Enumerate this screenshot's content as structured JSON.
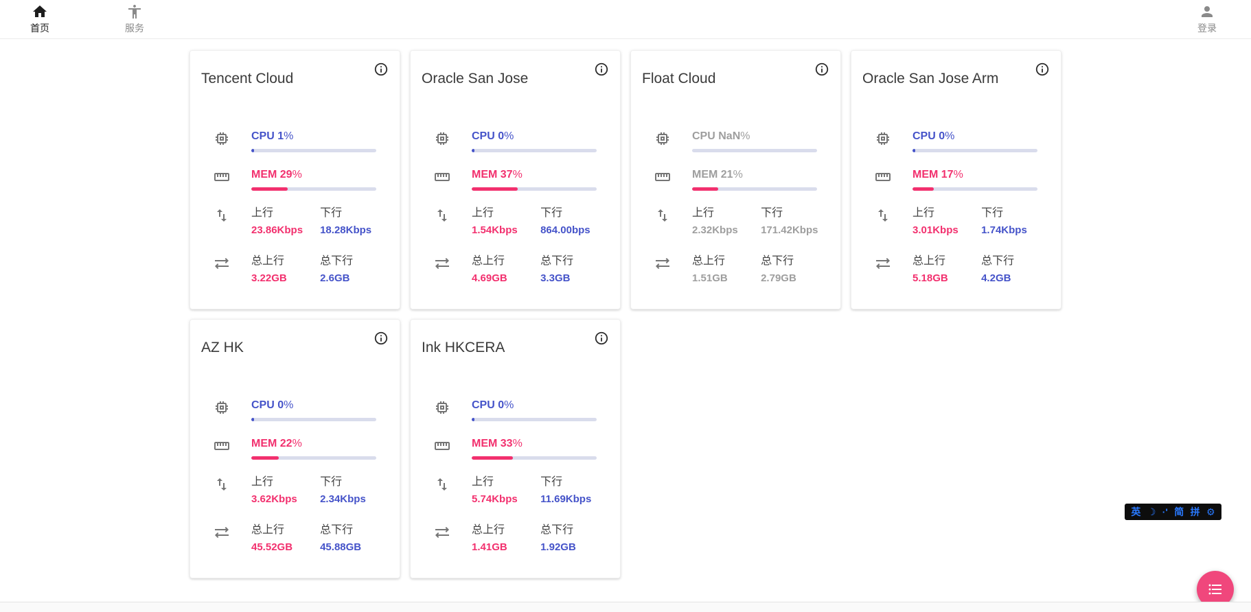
{
  "nav": {
    "items": [
      {
        "label": "首页",
        "icon": "home-icon",
        "active": true
      },
      {
        "label": "服务",
        "icon": "accessibility-icon",
        "active": false
      }
    ],
    "login": {
      "label": "登录",
      "icon": "person-icon"
    }
  },
  "labels": {
    "cpu": "CPU",
    "mem": "MEM",
    "pct": "%",
    "up": "上行",
    "down": "下行",
    "total_up": "总上行",
    "total_down": "总下行"
  },
  "cards": [
    {
      "title": "Tencent Cloud",
      "cpu": "1",
      "cpu_pct": 1,
      "mem": "29",
      "mem_pct": 29,
      "up": "23.86Kbps",
      "down": "18.28Kbps",
      "total_up": "3.22GB",
      "total_down": "2.6GB",
      "muted": false
    },
    {
      "title": "Oracle San Jose",
      "cpu": "0",
      "cpu_pct": 0,
      "mem": "37",
      "mem_pct": 37,
      "up": "1.54Kbps",
      "down": "864.00bps",
      "total_up": "4.69GB",
      "total_down": "3.3GB",
      "muted": false
    },
    {
      "title": "Float Cloud",
      "cpu": "NaN",
      "cpu_pct": null,
      "mem": "21",
      "mem_pct": 21,
      "up": "2.32Kbps",
      "down": "171.42Kbps",
      "total_up": "1.51GB",
      "total_down": "2.79GB",
      "muted": true
    },
    {
      "title": "Oracle San Jose Arm",
      "cpu": "0",
      "cpu_pct": 0,
      "mem": "17",
      "mem_pct": 17,
      "up": "3.01Kbps",
      "down": "1.74Kbps",
      "total_up": "5.18GB",
      "total_down": "4.2GB",
      "muted": false
    },
    {
      "title": "AZ HK",
      "cpu": "0",
      "cpu_pct": 0,
      "mem": "22",
      "mem_pct": 22,
      "up": "3.62Kbps",
      "down": "2.34Kbps",
      "total_up": "45.52GB",
      "total_down": "45.88GB",
      "muted": false
    },
    {
      "title": "Ink HKCERA",
      "cpu": "0",
      "cpu_pct": 0,
      "mem": "33",
      "mem_pct": 33,
      "up": "5.74Kbps",
      "down": "11.69Kbps",
      "total_up": "1.41GB",
      "total_down": "1.92GB",
      "muted": false
    }
  ],
  "ime": {
    "keys": [
      "英",
      "☽",
      "·'",
      "简",
      "拼",
      "⚙"
    ]
  },
  "fab": {
    "icon": "list-icon"
  },
  "colors": {
    "accent_blue": "#4553c9",
    "accent_pink": "#f2306e",
    "bar_track": "#d9dcec",
    "muted_gray": "#9e9e9e",
    "fab_pink": "#f0477c",
    "ime_blue": "#2979ff",
    "ime_bg": "#0d0d0d"
  }
}
